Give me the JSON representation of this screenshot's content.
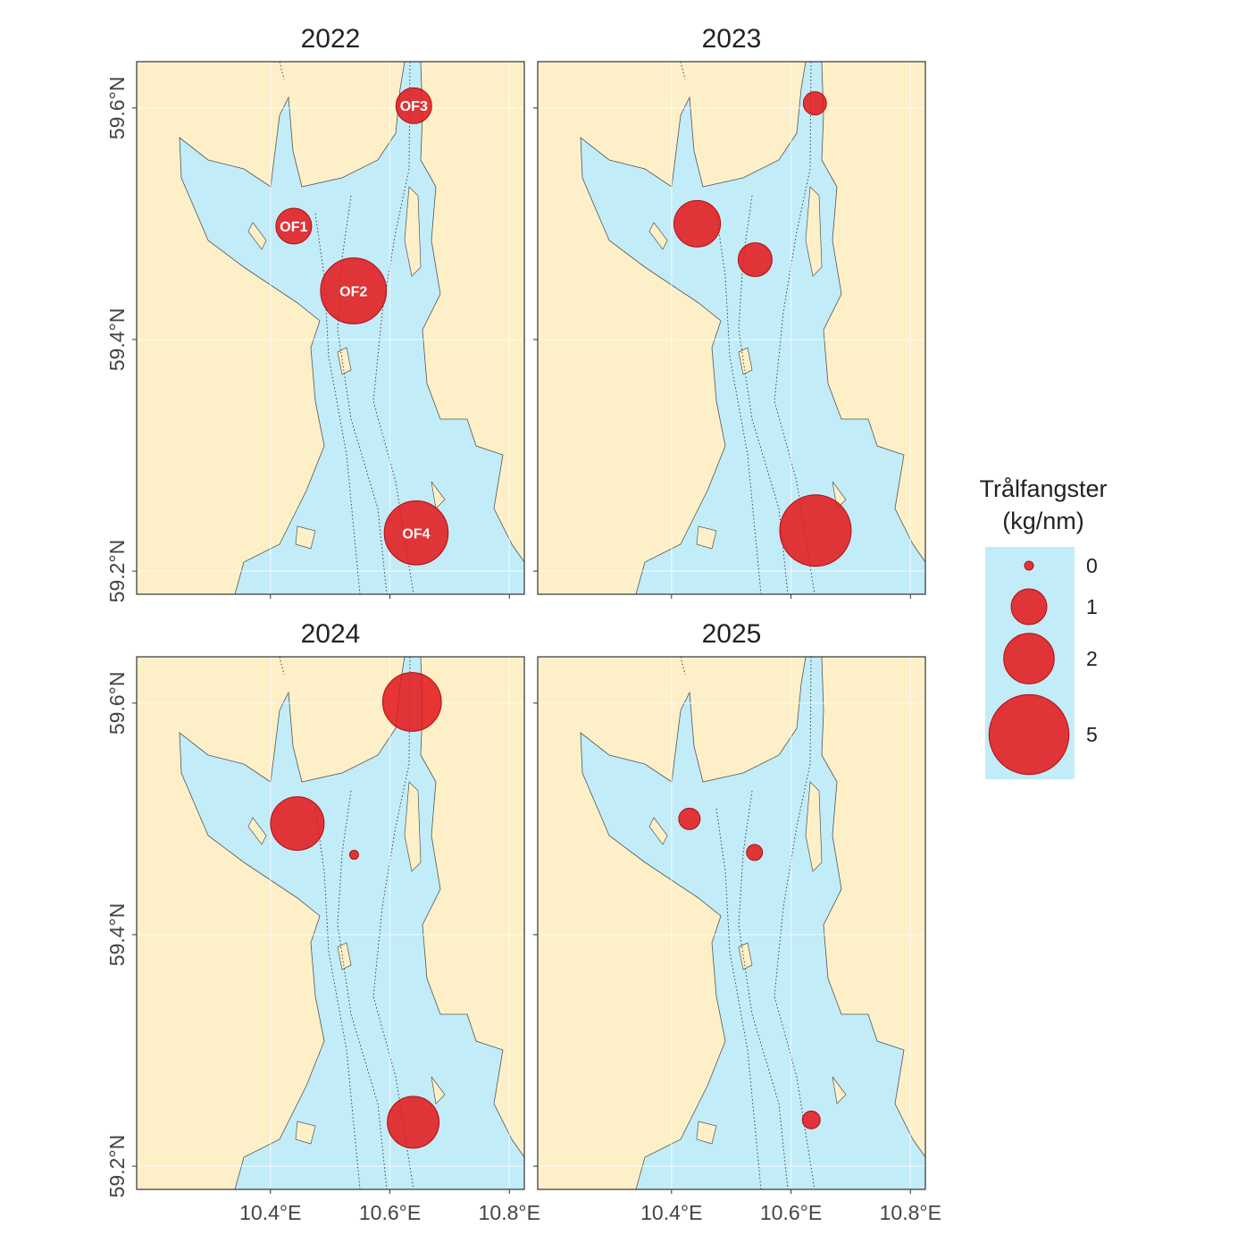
{
  "chart_data": [
    {
      "type": "scatter",
      "title": "2022",
      "x": [
        10.439,
        10.539,
        10.64,
        10.644
      ],
      "y": [
        59.498,
        59.442,
        59.602,
        59.233
      ],
      "sizes": [
        1.0,
        3.4,
        1.0,
        3.2
      ],
      "labels": [
        "OF1",
        "OF2",
        "OF3",
        "OF4"
      ],
      "xlim": [
        10.176,
        10.825
      ],
      "ylim": [
        59.18,
        59.64
      ],
      "xticks": [
        {
          "value": 10.4,
          "label": "10.4°E"
        },
        {
          "value": 10.6,
          "label": "10.6°E"
        },
        {
          "value": 10.8,
          "label": "10.8°E"
        }
      ],
      "yticks": [
        {
          "value": 59.2,
          "label": "59.2°N"
        },
        {
          "value": 59.4,
          "label": "59.4°N"
        },
        {
          "value": 59.6,
          "label": "59.6°N"
        }
      ],
      "color": "#e31a1c"
    },
    {
      "type": "scatter",
      "title": "2023",
      "x": [
        10.443,
        10.54,
        10.64,
        10.641
      ],
      "y": [
        59.5,
        59.469,
        59.604,
        59.235
      ],
      "sizes": [
        1.7,
        0.9,
        0.42,
        4.0
      ],
      "xlim": [
        10.176,
        10.825
      ],
      "ylim": [
        59.18,
        59.64
      ],
      "xticks": [
        {
          "value": 10.4,
          "label": "10.4°E"
        },
        {
          "value": 10.6,
          "label": "10.6°E"
        },
        {
          "value": 10.8,
          "label": "10.8°E"
        }
      ],
      "yticks": [
        {
          "value": 59.2,
          "label": "59.2°N"
        },
        {
          "value": 59.4,
          "label": "59.4°N"
        },
        {
          "value": 59.6,
          "label": "59.6°N"
        }
      ],
      "color": "#e31a1c"
    },
    {
      "type": "scatter",
      "title": "2024",
      "x": [
        10.445,
        10.54,
        10.637,
        10.639
      ],
      "y": [
        59.496,
        59.469,
        59.601,
        59.238
      ],
      "sizes": [
        2.25,
        0.05,
        2.7,
        2.1
      ],
      "xlim": [
        10.176,
        10.825
      ],
      "ylim": [
        59.18,
        59.64
      ],
      "xticks": [
        {
          "value": 10.4,
          "label": "10.4°E"
        },
        {
          "value": 10.6,
          "label": "10.6°E"
        },
        {
          "value": 10.8,
          "label": "10.8°E"
        }
      ],
      "yticks": [
        {
          "value": 59.2,
          "label": "59.2°N"
        },
        {
          "value": 59.4,
          "label": "59.4°N"
        },
        {
          "value": 59.6,
          "label": "59.6°N"
        }
      ],
      "color": "#e31a1c"
    },
    {
      "type": "scatter",
      "title": "2025",
      "x": [
        10.43,
        10.539,
        null,
        10.634
      ],
      "y": [
        59.5,
        59.471,
        null,
        59.24
      ],
      "sizes": [
        0.36,
        0.2,
        null,
        0.25
      ],
      "xlim": [
        10.176,
        10.825
      ],
      "ylim": [
        59.18,
        59.64
      ],
      "xticks": [
        {
          "value": 10.4,
          "label": "10.4°E"
        },
        {
          "value": 10.6,
          "label": "10.6°E"
        },
        {
          "value": 10.8,
          "label": "10.8°E"
        }
      ],
      "yticks": [
        {
          "value": 59.2,
          "label": "59.2°N"
        },
        {
          "value": 59.4,
          "label": "59.4°N"
        },
        {
          "value": 59.6,
          "label": "59.6°N"
        }
      ],
      "color": "#e31a1c"
    }
  ],
  "size_legend": {
    "title": [
      "Trålfangster",
      "(kg/nm)"
    ],
    "values": [
      0,
      1,
      2,
      5
    ]
  }
}
